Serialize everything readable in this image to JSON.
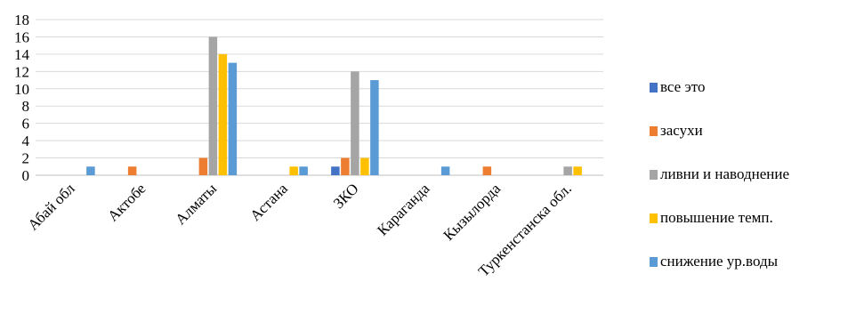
{
  "chart_data": {
    "type": "bar",
    "categories": [
      "Абай обл",
      "Актобе",
      "Алматы",
      "Астана",
      "ЗКО",
      "Караганда",
      "Кызылорда",
      "Туркенстанска обл."
    ],
    "series": [
      {
        "name": "все это",
        "color": "#4472C4",
        "values": [
          0,
          0,
          0,
          0,
          1,
          0,
          0,
          0
        ]
      },
      {
        "name": "засухи",
        "color": "#ED7D31",
        "values": [
          0,
          1,
          2,
          0,
          2,
          0,
          1,
          0
        ]
      },
      {
        "name": "ливни и наводнение",
        "color": "#A5A5A5",
        "values": [
          0,
          0,
          16,
          0,
          12,
          0,
          0,
          1
        ]
      },
      {
        "name": "повышение темп.",
        "color": "#FFC000",
        "values": [
          0,
          0,
          14,
          1,
          2,
          0,
          0,
          1
        ]
      },
      {
        "name": "снижение ур.воды",
        "color": "#5B9BD5",
        "values": [
          1,
          0,
          13,
          1,
          11,
          1,
          0,
          0
        ]
      }
    ],
    "yticks": [
      "0",
      "2",
      "4",
      "6",
      "8",
      "10",
      "12",
      "14",
      "16",
      "18"
    ],
    "ylim": [
      0,
      18
    ],
    "grid": true,
    "legend_position": "right"
  }
}
